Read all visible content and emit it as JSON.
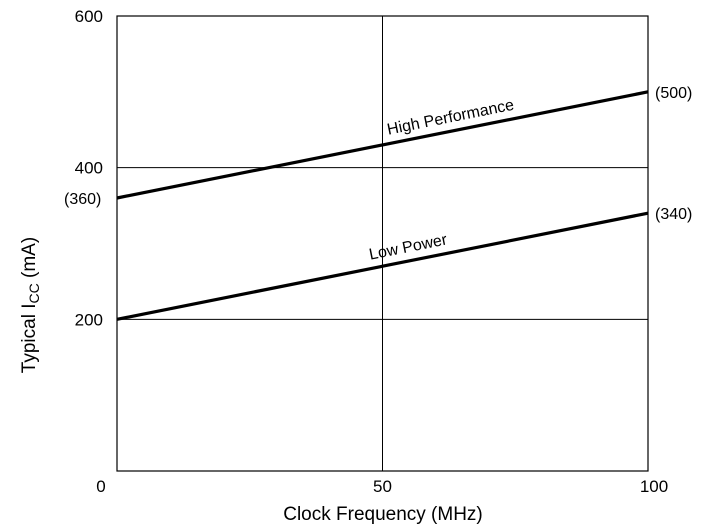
{
  "chart_data": {
    "type": "line",
    "xlabel": "Clock Frequency (MHz)",
    "ylabel": {
      "main": "Typical I",
      "subscript": "CC",
      "unit": " (mA)"
    },
    "xlim": [
      0,
      100
    ],
    "ylim": [
      0,
      600
    ],
    "x_ticks": [
      {
        "value": 0,
        "label": "0"
      },
      {
        "value": 50,
        "label": "50"
      },
      {
        "value": 100,
        "label": "100"
      }
    ],
    "y_ticks": [
      {
        "value": 200,
        "label": "200"
      },
      {
        "value": 400,
        "label": "400"
      },
      {
        "value": 600,
        "label": "600"
      }
    ],
    "grid": true,
    "series": [
      {
        "name": "High Performance",
        "x": [
          0,
          100
        ],
        "y": [
          360,
          500
        ],
        "start_label": "(360)",
        "end_label": "(500)"
      },
      {
        "name": "Low Power",
        "x": [
          0,
          100
        ],
        "y": [
          200,
          340
        ],
        "end_label": "(340)"
      }
    ]
  }
}
